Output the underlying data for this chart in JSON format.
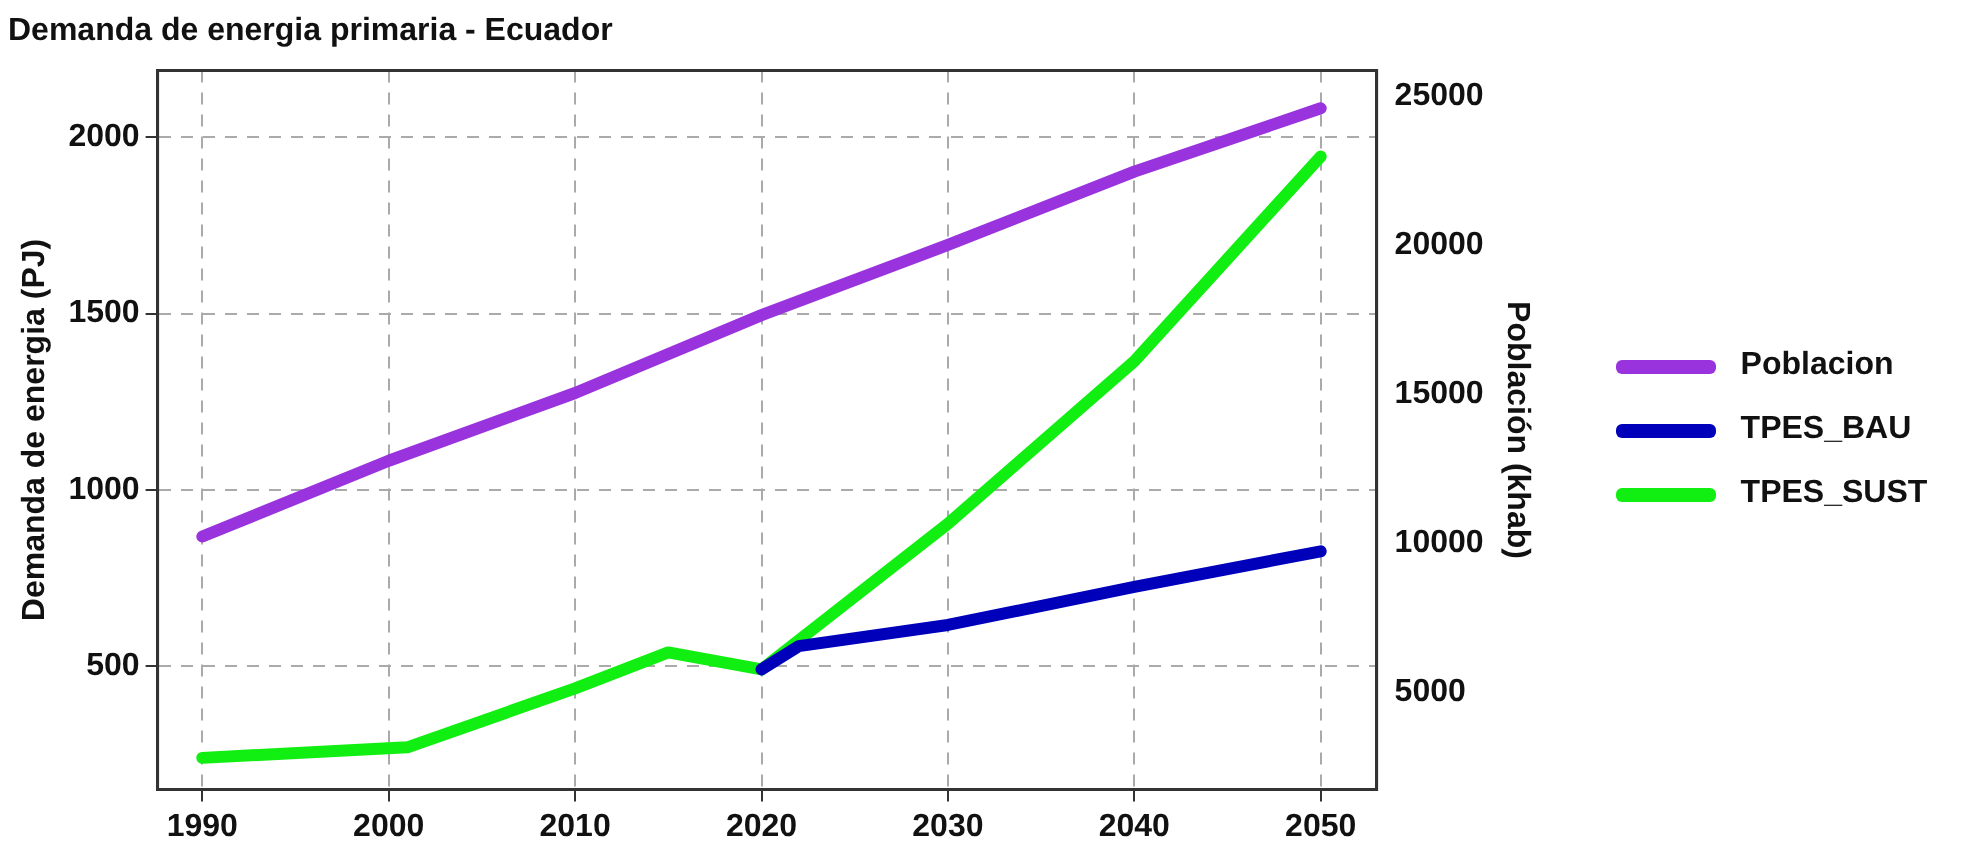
{
  "chart_data": {
    "type": "line",
    "title": "Demanda de energia primaria - Ecuador",
    "ylabel": "Demanda de energia (PJ)",
    "y2label": "Población (khab)",
    "xlim": [
      1987.6,
      2053
    ],
    "xticks": [
      1990,
      2000,
      2010,
      2020,
      2030,
      2040,
      2050
    ],
    "ylim": [
      150,
      2190
    ],
    "yticks": [
      500,
      1000,
      1500,
      2000
    ],
    "y2lim": [
      1750,
      25850
    ],
    "y2ticks": [
      5000,
      10000,
      15000,
      20000,
      25000
    ],
    "grid": true,
    "legend": "right",
    "line_style": "solid",
    "marker": "none",
    "series": [
      {
        "name": "Poblacion",
        "color": "#9933dd",
        "axis": "y2",
        "x": [
          1990,
          2000,
          2010,
          2020,
          2030,
          2040,
          2050
        ],
        "values": [
          10230,
          12770,
          15040,
          17650,
          20000,
          22460,
          24580
        ]
      },
      {
        "name": "TPES_BAU",
        "color": "#0000bb",
        "x": [
          2020,
          2022,
          2030,
          2040,
          2050
        ],
        "values": [
          491,
          557,
          617,
          725,
          826
        ]
      },
      {
        "name": "TPES_SUST",
        "color": "#11ee11",
        "x": [
          1990,
          2001,
          2010,
          2015,
          2020,
          2030,
          2040,
          2050
        ],
        "values": [
          240,
          270,
          437,
          539,
          491,
          904,
          1365,
          1946
        ]
      }
    ]
  }
}
